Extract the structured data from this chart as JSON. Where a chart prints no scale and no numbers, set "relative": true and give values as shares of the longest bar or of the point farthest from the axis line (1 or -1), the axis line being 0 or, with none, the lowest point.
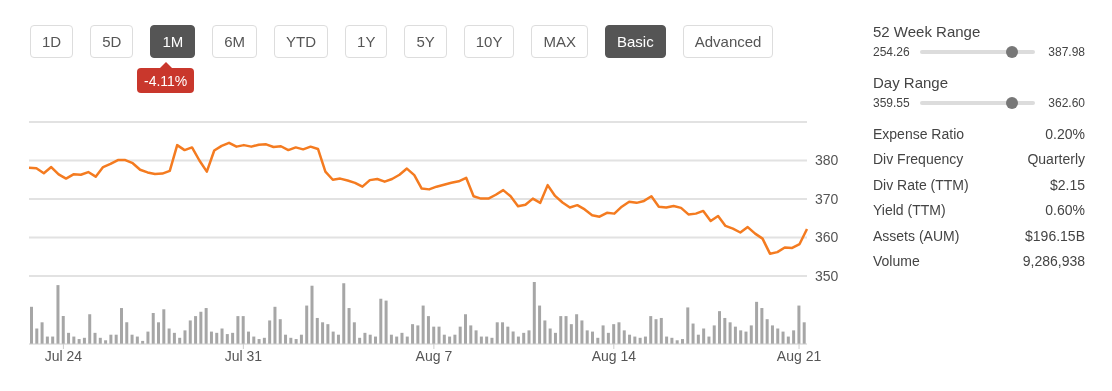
{
  "chart_data": [
    {
      "type": "other",
      "annotations": [
        "1D",
        "5D",
        "1M",
        "6M",
        "YTD",
        "1Y",
        "5Y",
        "10Y",
        "MAX",
        "Basic",
        "Advanced",
        "-4.11%",
        "52 Week Range",
        "254.26",
        "387.98",
        "Day Range",
        "359.55",
        "362.60",
        "Expense Ratio",
        "0.20%",
        "Div Frequency",
        "Quarterly",
        "Div Rate (TTM)",
        "$2.15",
        "Yield (TTM)",
        "0.60%",
        "Assets (AUM)",
        "$196.15B",
        "Volume",
        "9,286,938"
      ]
    },
    {
      "type": "line",
      "color": "#f47b20",
      "grid": "y",
      "tick_labels": "y",
      "ylim": [
        350,
        390
      ],
      "yticks": [
        350,
        360,
        370,
        380,
        {
          "value": 390,
          "label": null
        }
      ],
      "categories": [
        null,
        null,
        null,
        null,
        null,
        null,
        null,
        null,
        null,
        null,
        null,
        null,
        null,
        null,
        null,
        null,
        null,
        null,
        null,
        null,
        null,
        null,
        null,
        null,
        null,
        null,
        null,
        null,
        null,
        null,
        null,
        null,
        null,
        null,
        null,
        null,
        null,
        null,
        null,
        null,
        null,
        null,
        null,
        null,
        null,
        null,
        null,
        null,
        null,
        null,
        null,
        null,
        null,
        null,
        null,
        null,
        null,
        null,
        null,
        null,
        null,
        null,
        null,
        null,
        null,
        null,
        null,
        null,
        null,
        null,
        null,
        null,
        null,
        null,
        null,
        null,
        null,
        null,
        null,
        null,
        null,
        null,
        null,
        null,
        null,
        null,
        null,
        null,
        null,
        null,
        null,
        null,
        null,
        null,
        null,
        null,
        null,
        null,
        null,
        null,
        null,
        null,
        null,
        null,
        null,
        null
      ],
      "values": [
        378.1,
        378.0,
        376.7,
        378.3,
        376.4,
        375.3,
        376.4,
        376.3,
        377.0,
        375.8,
        378.3,
        379.1,
        380.1,
        380.1,
        379.3,
        377.6,
        376.9,
        376.5,
        376.6,
        377.3,
        384.0,
        382.7,
        383.4,
        380.0,
        377.1,
        382.6,
        383.8,
        384.6,
        383.6,
        384.0,
        383.6,
        384.1,
        384.2,
        383.5,
        383.7,
        382.7,
        383.4,
        382.9,
        383.6,
        383.0,
        377.1,
        375.0,
        375.3,
        374.8,
        374.2,
        373.2,
        374.9,
        375.2,
        374.5,
        375.2,
        376.3,
        377.9,
        376.2,
        372.7,
        372.5,
        373.2,
        373.7,
        374.2,
        374.6,
        375.5,
        370.7,
        370.1,
        370.1,
        371.1,
        372.3,
        370.7,
        368.1,
        368.5,
        370.1,
        369.0,
        373.6,
        370.8,
        369.1,
        367.8,
        368.4,
        367.3,
        365.8,
        365.4,
        366.4,
        366.2,
        368.0,
        369.3,
        369.0,
        369.5,
        370.7,
        368.0,
        367.8,
        368.2,
        367.7,
        366.0,
        366.2,
        366.9,
        364.3,
        365.6,
        363.0,
        362.3,
        361.3,
        362.7,
        361.0,
        359.7,
        355.8,
        356.2,
        357.4,
        357.3,
        358.3,
        362.2
      ]
    },
    {
      "type": "bar",
      "color": "#a6a6a6",
      "relative": true,
      "tick_labels": "x",
      "categories": [
        null,
        null,
        null,
        null,
        null,
        null,
        "Jul 24",
        null,
        null,
        null,
        null,
        null,
        null,
        null,
        null,
        null,
        null,
        null,
        null,
        null,
        null,
        null,
        null,
        null,
        null,
        null,
        null,
        null,
        null,
        null,
        null,
        null,
        null,
        null,
        null,
        null,
        null,
        null,
        null,
        null,
        "Jul 31",
        null,
        null,
        null,
        null,
        null,
        null,
        null,
        null,
        null,
        null,
        null,
        null,
        null,
        null,
        null,
        null,
        null,
        null,
        null,
        null,
        null,
        null,
        null,
        null,
        null,
        null,
        null,
        null,
        null,
        null,
        null,
        null,
        null,
        null,
        null,
        "Aug 7",
        null,
        null,
        null,
        null,
        null,
        null,
        null,
        null,
        null,
        null,
        null,
        null,
        null,
        null,
        null,
        null,
        null,
        null,
        null,
        null,
        null,
        null,
        null,
        null,
        null,
        null,
        null,
        null,
        null,
        null,
        null,
        null,
        null,
        "Aug 14",
        null,
        null,
        null,
        null,
        null,
        null,
        null,
        null,
        null,
        null,
        null,
        null,
        null,
        null,
        null,
        null,
        null,
        null,
        null,
        null,
        null,
        null,
        null,
        null,
        null,
        null,
        null,
        null,
        null,
        null,
        null,
        null,
        null,
        null,
        "Aug 21",
        null
      ],
      "values": [
        0.6,
        0.25,
        0.35,
        0.12,
        0.12,
        0.95,
        0.45,
        0.18,
        0.12,
        0.08,
        0.1,
        0.48,
        0.18,
        0.1,
        0.06,
        0.15,
        0.15,
        0.58,
        0.35,
        0.15,
        0.12,
        0.05,
        0.2,
        0.5,
        0.35,
        0.56,
        0.25,
        0.18,
        0.1,
        0.22,
        0.38,
        0.45,
        0.52,
        0.58,
        0.2,
        0.18,
        0.25,
        0.16,
        0.18,
        0.45,
        0.45,
        0.2,
        0.12,
        0.08,
        0.1,
        0.38,
        0.6,
        0.4,
        0.15,
        0.1,
        0.08,
        0.15,
        0.62,
        0.94,
        0.42,
        0.35,
        0.32,
        0.2,
        0.15,
        0.98,
        0.58,
        0.35,
        0.1,
        0.18,
        0.15,
        0.12,
        0.73,
        0.7,
        0.15,
        0.12,
        0.18,
        0.12,
        0.32,
        0.3,
        0.62,
        0.45,
        0.28,
        0.28,
        0.15,
        0.12,
        0.15,
        0.28,
        0.48,
        0.3,
        0.22,
        0.12,
        0.12,
        0.1,
        0.35,
        0.35,
        0.28,
        0.2,
        0.12,
        0.18,
        0.22,
        1.0,
        0.62,
        0.38,
        0.25,
        0.18,
        0.45,
        0.45,
        0.32,
        0.48,
        0.38,
        0.22,
        0.2,
        0.1,
        0.3,
        0.18,
        0.32,
        0.35,
        0.22,
        0.15,
        0.12,
        0.1,
        0.12,
        0.45,
        0.4,
        0.42,
        0.12,
        0.1,
        0.06,
        0.08,
        0.59,
        0.33,
        0.15,
        0.25,
        0.12,
        0.3,
        0.53,
        0.42,
        0.35,
        0.28,
        0.22,
        0.2,
        0.3,
        0.68,
        0.58,
        0.4,
        0.3,
        0.25,
        0.2,
        0.12,
        0.22,
        0.62,
        0.35
      ]
    }
  ]
}
